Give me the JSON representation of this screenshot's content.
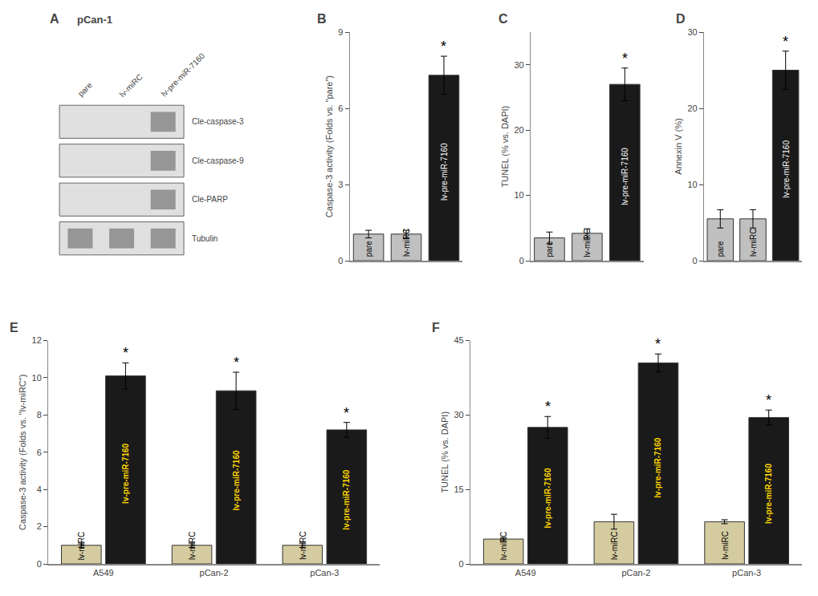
{
  "chart_data": [
    {
      "type": "blot",
      "title": "A",
      "subtitle": "pCan-1",
      "categories": [
        "pare",
        "lv-miRC",
        "lv-pre-miR-7160"
      ],
      "series": [
        {
          "name": "Cle-caspase-3",
          "values": [
            0,
            0,
            1
          ]
        },
        {
          "name": "Cle-caspase-9",
          "values": [
            0,
            0,
            1
          ]
        },
        {
          "name": "Cle-PARP",
          "values": [
            0,
            0,
            1
          ]
        },
        {
          "name": "Tubulin",
          "values": [
            1,
            1,
            1
          ]
        }
      ]
    },
    {
      "type": "bar",
      "title": "B",
      "categories": [
        "pare",
        "lv-miRC",
        "lv-pre-miR-7160"
      ],
      "values": [
        1.05,
        1.05,
        7.3
      ],
      "errors": [
        0.15,
        0.15,
        0.75
      ],
      "colors": [
        "#c0c0c0",
        "#c0c0c0",
        "#1a1a1a"
      ],
      "ylabel": "Caspase-3 activity (Folds vs. \"pare\")",
      "ylim": [
        0,
        9
      ],
      "yticks": [
        0,
        3,
        6,
        9
      ],
      "grid": false,
      "tick_labels": "y",
      "annotations": [
        {
          "x": "lv-pre-miR-7160",
          "text": "*"
        }
      ]
    },
    {
      "type": "bar",
      "title": "C",
      "categories": [
        "pare",
        "lv-miRC",
        "lv-pre-miR-7160"
      ],
      "values": [
        3.5,
        4.2,
        27.0
      ],
      "errors": [
        0.9,
        0.7,
        2.5
      ],
      "colors": [
        "#c0c0c0",
        "#c0c0c0",
        "#1a1a1a"
      ],
      "ylabel": "TUNEL (% vs. DAPI)",
      "ylim": [
        0,
        35
      ],
      "yticks": [
        0,
        10,
        20,
        30
      ],
      "grid": false,
      "tick_labels": "y",
      "annotations": [
        {
          "x": "lv-pre-miR-7160",
          "text": "*"
        }
      ]
    },
    {
      "type": "bar",
      "title": "D",
      "categories": [
        "pare",
        "lv-miRC",
        "lv-pre-miR-7160"
      ],
      "values": [
        5.5,
        5.5,
        25.0
      ],
      "errors": [
        1.2,
        1.2,
        2.5
      ],
      "colors": [
        "#c0c0c0",
        "#c0c0c0",
        "#1a1a1a"
      ],
      "ylabel": "Annexin V (%)",
      "ylim": [
        0,
        30
      ],
      "yticks": [
        0,
        10,
        20,
        30
      ],
      "grid": false,
      "tick_labels": "y",
      "annotations": [
        {
          "x": "lv-pre-miR-7160",
          "text": "*"
        }
      ]
    },
    {
      "type": "bar",
      "title": "E",
      "categories": [
        "A549",
        "pCan-2",
        "pCan-3"
      ],
      "series": [
        {
          "name": "lv-miRC",
          "color": "#d4cba0",
          "values": [
            1.0,
            1.0,
            1.0
          ],
          "errors": [
            0.12,
            0.12,
            0.12
          ]
        },
        {
          "name": "lv-pre-miR-7160",
          "color": "#1a1a1a",
          "values": [
            10.1,
            9.3,
            7.2
          ],
          "errors": [
            0.7,
            1.0,
            0.4
          ]
        }
      ],
      "ylabel": "Caspase-3 activity (Folds vs. \"lv-miRC\")",
      "ylim": [
        0,
        12
      ],
      "yticks": [
        0,
        2,
        4,
        6,
        8,
        10,
        12
      ],
      "grid": false,
      "annotations": [
        {
          "x": "A549",
          "series": "lv-pre-miR-7160",
          "text": "*"
        },
        {
          "x": "pCan-2",
          "series": "lv-pre-miR-7160",
          "text": "*"
        },
        {
          "x": "pCan-3",
          "series": "lv-pre-miR-7160",
          "text": "*"
        }
      ]
    },
    {
      "type": "bar",
      "title": "F",
      "categories": [
        "A549",
        "pCan-2",
        "pCan-3"
      ],
      "series": [
        {
          "name": "lv-miRC",
          "color": "#d4cba0",
          "values": [
            5.0,
            8.5,
            8.5
          ],
          "errors": [
            0.3,
            1.5,
            0.4
          ]
        },
        {
          "name": "lv-pre-miR-7160",
          "color": "#1a1a1a",
          "values": [
            27.5,
            40.5,
            29.5
          ],
          "errors": [
            2.2,
            1.8,
            1.5
          ]
        }
      ],
      "ylabel": "TUNEL (% vs. DAPI)",
      "ylim": [
        0,
        45
      ],
      "yticks": [
        0,
        15,
        30,
        45
      ],
      "grid": false,
      "annotations": [
        {
          "x": "A549",
          "series": "lv-pre-miR-7160",
          "text": "*"
        },
        {
          "x": "pCan-2",
          "series": "lv-pre-miR-7160",
          "text": "*"
        },
        {
          "x": "pCan-3",
          "series": "lv-pre-miR-7160",
          "text": "*"
        }
      ]
    }
  ]
}
